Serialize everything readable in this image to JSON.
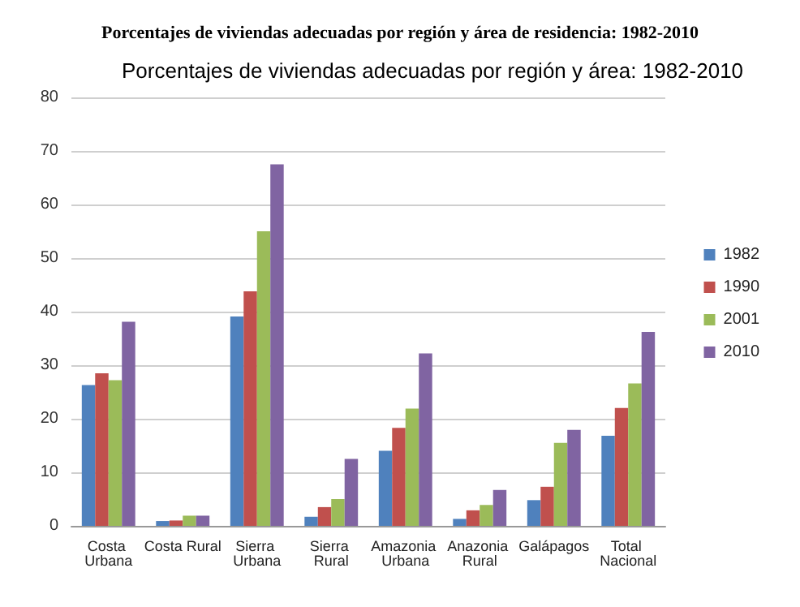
{
  "chart_data": {
    "type": "bar",
    "title": "Porcentajes de viviendas adecuadas por región y área de residencia: 1982-2010",
    "subtitle": "Porcentajes de viviendas adecuadas por región y área: 1982-2010",
    "categories": [
      "Costa Urbana",
      "Costa Rural",
      "Sierra Urbana",
      "Sierra Rural",
      "Amazonia Urbana",
      "Anazonia Rural",
      "Galápagos",
      "Total Nacional"
    ],
    "series": [
      {
        "name": "1982",
        "color": "#4f81bd",
        "values": [
          26.3,
          0.9,
          39.1,
          1.7,
          14.0,
          1.3,
          4.8,
          16.8
        ]
      },
      {
        "name": "1990",
        "color": "#c0504d",
        "values": [
          28.5,
          1.0,
          43.8,
          3.5,
          18.3,
          2.9,
          7.3,
          22.0
        ]
      },
      {
        "name": "2001",
        "color": "#9bbb59",
        "values": [
          27.2,
          1.9,
          55.0,
          5.0,
          21.9,
          3.9,
          15.5,
          26.6
        ]
      },
      {
        "name": "2010",
        "color": "#8064a2",
        "values": [
          38.1,
          1.9,
          67.5,
          12.5,
          32.2,
          6.7,
          17.9,
          36.2
        ]
      }
    ],
    "ylim": [
      0,
      80
    ],
    "yticks": [
      0,
      10,
      20,
      30,
      40,
      50,
      60,
      70,
      80
    ],
    "grid": "y",
    "legend": "right"
  }
}
